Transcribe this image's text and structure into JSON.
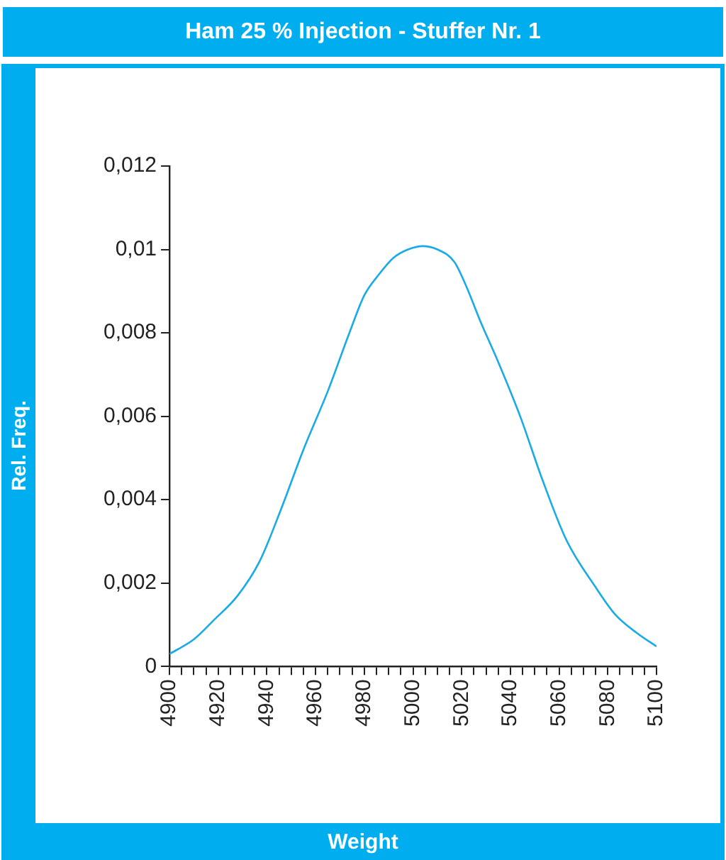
{
  "chart_data": {
    "type": "line",
    "title": "Ham 25 % Injection - Stuffer Nr. 1",
    "xlabel": "Weight",
    "ylabel": "Rel. Freq.",
    "x": [
      4900,
      4910,
      4918,
      4928,
      4937,
      4946,
      4955,
      4965,
      4974,
      4980,
      4986,
      4992,
      4998,
      5004,
      5010,
      5017,
      5022,
      5027.5,
      5035,
      5044,
      5053,
      5063,
      5075,
      5083,
      5092,
      5100
    ],
    "series": [
      {
        "color": "#1aabe6",
        "values": [
          0.0003,
          0.00065,
          0.0011,
          0.0017,
          0.00252,
          0.0038,
          0.0052,
          0.0066,
          0.00802,
          0.0089,
          0.0094,
          0.0098,
          0.01,
          0.01008,
          0.01,
          0.0097,
          0.0091,
          0.0083,
          0.0073,
          0.006,
          0.0045,
          0.00303,
          0.0019,
          0.00125,
          0.0008,
          0.00048
        ]
      }
    ],
    "xlim": [
      4900,
      5100
    ],
    "xticks": [
      4900,
      {
        "value": 4905,
        "label": null
      },
      {
        "value": 4910,
        "label": null
      },
      {
        "value": 4915,
        "label": null
      },
      4920,
      {
        "value": 4925,
        "label": null
      },
      {
        "value": 4930,
        "label": null
      },
      {
        "value": 4935,
        "label": null
      },
      4940,
      {
        "value": 4945,
        "label": null
      },
      {
        "value": 4950,
        "label": null
      },
      {
        "value": 4955,
        "label": null
      },
      4960,
      {
        "value": 4965,
        "label": null
      },
      {
        "value": 4970,
        "label": null
      },
      {
        "value": 4975,
        "label": null
      },
      4980,
      {
        "value": 4985,
        "label": null
      },
      {
        "value": 4990,
        "label": null
      },
      {
        "value": 4995,
        "label": null
      },
      5000,
      {
        "value": 5005,
        "label": null
      },
      {
        "value": 5010,
        "label": null
      },
      {
        "value": 5015,
        "label": null
      },
      5020,
      {
        "value": 5025,
        "label": null
      },
      {
        "value": 5030,
        "label": null
      },
      {
        "value": 5035,
        "label": null
      },
      5040,
      {
        "value": 5045,
        "label": null
      },
      {
        "value": 5050,
        "label": null
      },
      {
        "value": 5055,
        "label": null
      },
      5060,
      {
        "value": 5065,
        "label": null
      },
      {
        "value": 5070,
        "label": null
      },
      {
        "value": 5075,
        "label": null
      },
      5080,
      {
        "value": 5085,
        "label": null
      },
      {
        "value": 5090,
        "label": null
      },
      {
        "value": 5095,
        "label": null
      },
      5100
    ],
    "ylim": [
      0,
      0.012
    ],
    "yticks": [
      0,
      {
        "value": 0.002,
        "label": "0,002"
      },
      {
        "value": 0.004,
        "label": "0,004"
      },
      {
        "value": 0.006,
        "label": "0,006"
      },
      {
        "value": 0.008,
        "label": "0,008"
      },
      {
        "value": 0.01,
        "label": "0,01"
      },
      {
        "value": 0.012,
        "label": "0,012"
      }
    ],
    "grid": false,
    "legend": false,
    "marker": "none",
    "line_style": "solid"
  }
}
